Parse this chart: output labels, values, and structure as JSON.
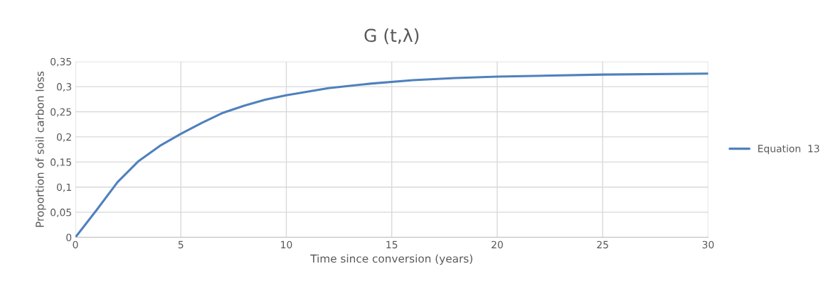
{
  "chart_data": {
    "type": "line",
    "title": "G (t,λ)",
    "xlabel": "Time since conversion (years)",
    "ylabel": "Proportion of soil carbon loss",
    "x": [
      0,
      1,
      2,
      3,
      4,
      5,
      6,
      7,
      8,
      9,
      10,
      12,
      14,
      16,
      18,
      20,
      25,
      30
    ],
    "series": [
      {
        "name": "Equation  13",
        "color": "#4f81bd",
        "values": [
          0,
          0.054,
          0.11,
          0.152,
          0.182,
          0.206,
          0.228,
          0.248,
          0.262,
          0.274,
          0.283,
          0.297,
          0.306,
          0.313,
          0.317,
          0.32,
          0.324,
          0.326
        ]
      }
    ],
    "xlim": [
      0,
      30
    ],
    "xticks": [
      0,
      5,
      10,
      15,
      20,
      25,
      30
    ],
    "ylim": [
      0,
      0.35
    ],
    "yticks": [
      0,
      {
        "value": 0.05,
        "label": "0,05"
      },
      {
        "value": 0.1,
        "label": "0,1"
      },
      {
        "value": 0.15,
        "label": "0,15"
      },
      {
        "value": 0.2,
        "label": "0,2"
      },
      {
        "value": 0.25,
        "label": "0,25"
      },
      {
        "value": 0.3,
        "label": "0,3"
      },
      {
        "value": 0.35,
        "label": "0,35"
      }
    ],
    "grid": true,
    "legend": "right",
    "marker": "none",
    "line_style": "solid"
  }
}
